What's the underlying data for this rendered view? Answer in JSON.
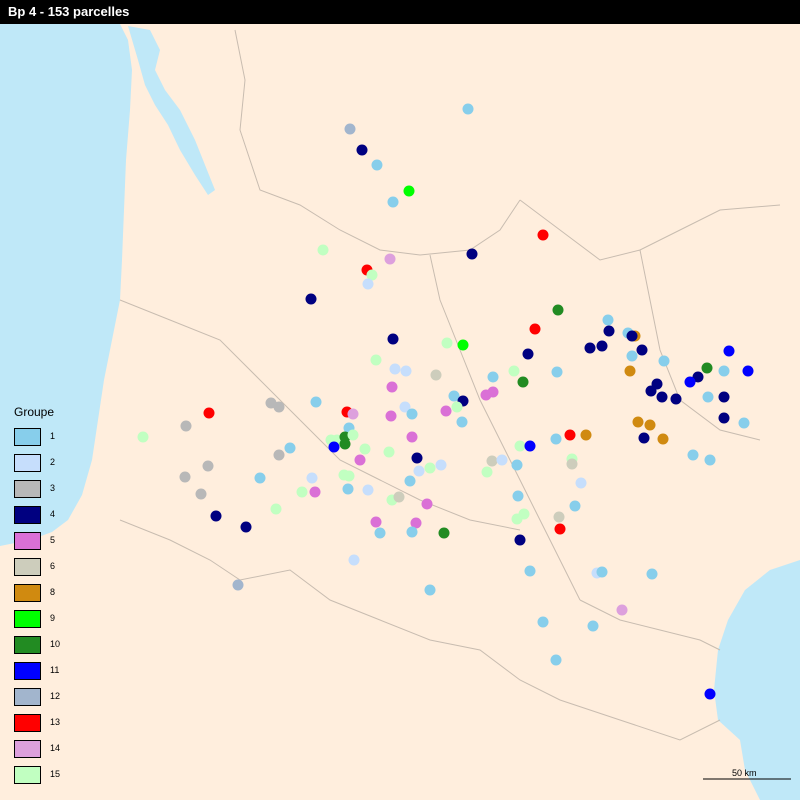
{
  "title": "Bp 4 - 153 parcelles",
  "colors": {
    "land": "#ffeedd",
    "sea": "#bfe8f8",
    "boundary": "#c8bcb0"
  },
  "legend": {
    "title": "Groupe",
    "items": [
      {
        "label": "1",
        "color": "#87ceeb"
      },
      {
        "label": "2",
        "color": "#c6defc"
      },
      {
        "label": "3",
        "color": "#b8b8b8"
      },
      {
        "label": "4",
        "color": "#000080"
      },
      {
        "label": "5",
        "color": "#da70d6"
      },
      {
        "label": "6",
        "color": "#cdcdbc"
      },
      {
        "label": "8",
        "color": "#d08a10"
      },
      {
        "label": "9",
        "color": "#00ff00"
      },
      {
        "label": "10",
        "color": "#228b22"
      },
      {
        "label": "11",
        "color": "#0000ff"
      },
      {
        "label": "12",
        "color": "#a2b5cd"
      },
      {
        "label": "13",
        "color": "#ff0000"
      },
      {
        "label": "14",
        "color": "#dda0dd"
      },
      {
        "label": "15",
        "color": "#c1ffc1"
      }
    ]
  },
  "scale_bar": {
    "label": "50 km"
  }
}
